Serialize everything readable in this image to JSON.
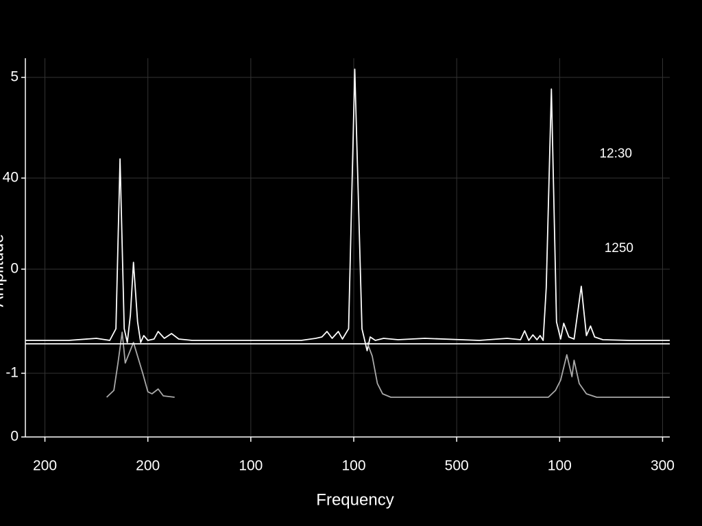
{
  "chart_data": {
    "type": "line",
    "x_label": "Frequency",
    "y_label": "Amplitude",
    "annotations": [
      "12:30",
      "1250"
    ],
    "xlim": [
      -0.19,
      6.07
    ],
    "ylim": [
      0,
      5.53
    ],
    "xticks": [
      {
        "value": 0,
        "label": "200"
      },
      {
        "value": 1,
        "label": "200"
      },
      {
        "value": 2,
        "label": "100"
      },
      {
        "value": 3,
        "label": "100"
      },
      {
        "value": 4,
        "label": "500"
      },
      {
        "value": 5,
        "label": "100"
      },
      {
        "value": 6,
        "label": "300"
      }
    ],
    "yticks": [
      {
        "value": 5.25,
        "label": "5"
      },
      {
        "value": 3.78,
        "label": "40"
      },
      {
        "value": 2.45,
        "label": "0"
      },
      {
        "value": 0.93,
        "label": "-1"
      },
      0
    ],
    "grid": true,
    "series": [
      {
        "color": "#ffffff",
        "x": [
          -0.19,
          0.23,
          0.5,
          0.63,
          0.69,
          0.73,
          0.77,
          0.8,
          0.83,
          0.86,
          0.9,
          0.93,
          0.96,
          1.0,
          1.06,
          1.1,
          1.16,
          1.23,
          1.3,
          1.43,
          2.49,
          2.63,
          2.69,
          2.74,
          2.79,
          2.85,
          2.89,
          2.95,
          3.01,
          3.08,
          3.13,
          3.16,
          3.21,
          3.29,
          3.43,
          3.69,
          4.22,
          4.49,
          4.62,
          4.66,
          4.7,
          4.74,
          4.78,
          4.81,
          4.84,
          4.87,
          4.92,
          4.97,
          5.01,
          5.04,
          5.09,
          5.14,
          5.21,
          5.26,
          5.3,
          5.34,
          5.42,
          5.69,
          6.07
        ],
        "values": [
          1.41,
          1.41,
          1.44,
          1.41,
          1.58,
          4.06,
          1.58,
          1.38,
          1.78,
          2.55,
          1.68,
          1.38,
          1.48,
          1.41,
          1.43,
          1.54,
          1.44,
          1.51,
          1.43,
          1.41,
          1.41,
          1.44,
          1.46,
          1.54,
          1.44,
          1.54,
          1.43,
          1.58,
          5.37,
          1.58,
          1.26,
          1.46,
          1.41,
          1.44,
          1.42,
          1.44,
          1.41,
          1.44,
          1.42,
          1.55,
          1.41,
          1.49,
          1.42,
          1.48,
          1.41,
          2.18,
          5.08,
          1.68,
          1.43,
          1.66,
          1.46,
          1.43,
          2.2,
          1.48,
          1.62,
          1.46,
          1.42,
          1.41,
          1.41
        ]
      },
      {
        "color": "#aaaaaa",
        "x": [
          0.6,
          0.67,
          0.71,
          0.75,
          0.78,
          0.82,
          0.86,
          0.9,
          0.95,
          1.0,
          1.04,
          1.1,
          1.15,
          1.26,
          null,
          3.13,
          3.18,
          3.23,
          3.28,
          3.36,
          3.83,
          4.89,
          4.96,
          5.01,
          5.07,
          5.12,
          5.14,
          5.19,
          5.26,
          5.36,
          6.07
        ],
        "values": [
          0.58,
          0.68,
          1.08,
          1.53,
          1.08,
          1.23,
          1.38,
          1.18,
          0.93,
          0.66,
          0.63,
          0.7,
          0.6,
          0.58,
          null,
          1.38,
          1.18,
          0.78,
          0.63,
          0.58,
          0.58,
          0.58,
          0.68,
          0.83,
          1.2,
          0.88,
          1.12,
          0.78,
          0.63,
          0.58,
          0.58
        ]
      },
      {
        "color": "#ffffff",
        "x": [
          -0.19,
          6.07
        ],
        "values": [
          1.36,
          1.36
        ]
      }
    ]
  }
}
